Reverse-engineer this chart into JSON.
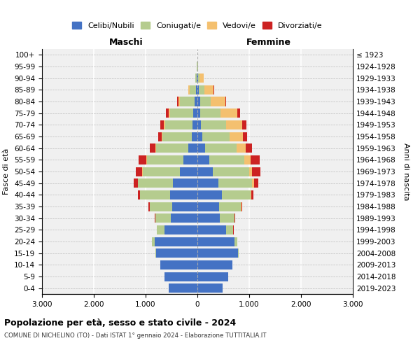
{
  "age_groups": [
    "0-4",
    "5-9",
    "10-14",
    "15-19",
    "20-24",
    "25-29",
    "30-34",
    "35-39",
    "40-44",
    "45-49",
    "50-54",
    "55-59",
    "60-64",
    "65-69",
    "70-74",
    "75-79",
    "80-84",
    "85-89",
    "90-94",
    "95-99",
    "100+"
  ],
  "birth_years": [
    "2019-2023",
    "2014-2018",
    "2009-2013",
    "2004-2008",
    "1999-2003",
    "1994-1998",
    "1989-1993",
    "1984-1988",
    "1979-1983",
    "1974-1978",
    "1969-1973",
    "1964-1968",
    "1959-1963",
    "1954-1958",
    "1949-1953",
    "1944-1948",
    "1939-1943",
    "1934-1938",
    "1929-1933",
    "1924-1928",
    "≤ 1923"
  ],
  "maschi": {
    "celibi": [
      550,
      640,
      720,
      800,
      820,
      640,
      510,
      480,
      530,
      470,
      340,
      270,
      180,
      110,
      90,
      80,
      60,
      30,
      10,
      4,
      2
    ],
    "coniugati": [
      0,
      0,
      0,
      10,
      60,
      140,
      300,
      440,
      580,
      680,
      720,
      700,
      620,
      560,
      530,
      450,
      280,
      120,
      30,
      5,
      2
    ],
    "vedovi": [
      0,
      0,
      0,
      0,
      1,
      1,
      1,
      2,
      3,
      5,
      5,
      10,
      15,
      20,
      30,
      30,
      30,
      20,
      5,
      2,
      1
    ],
    "divorziati": [
      0,
      0,
      0,
      0,
      2,
      5,
      10,
      20,
      40,
      80,
      130,
      150,
      100,
      70,
      60,
      50,
      20,
      10,
      2,
      0,
      0
    ]
  },
  "femmine": {
    "nubili": [
      490,
      600,
      670,
      790,
      720,
      560,
      430,
      420,
      470,
      400,
      300,
      230,
      150,
      90,
      70,
      60,
      55,
      30,
      10,
      4,
      2
    ],
    "coniugate": [
      0,
      0,
      0,
      10,
      50,
      130,
      280,
      420,
      560,
      660,
      700,
      680,
      600,
      530,
      490,
      380,
      200,
      100,
      30,
      4,
      2
    ],
    "vedove": [
      0,
      0,
      0,
      0,
      2,
      3,
      5,
      8,
      15,
      30,
      60,
      120,
      180,
      260,
      310,
      330,
      280,
      180,
      80,
      10,
      2
    ],
    "divorziate": [
      0,
      0,
      0,
      0,
      2,
      5,
      10,
      20,
      40,
      80,
      160,
      170,
      120,
      80,
      70,
      50,
      20,
      10,
      2,
      0,
      0
    ]
  },
  "colors": {
    "celibi": "#4472c4",
    "coniugati": "#b5cc8e",
    "vedovi": "#f4c06f",
    "divorziati": "#cc2222"
  },
  "title": "Popolazione per età, sesso e stato civile - 2024",
  "subtitle": "COMUNE DI NICHELINO (TO) - Dati ISTAT 1° gennaio 2024 - Elaborazione TUTTITALIA.IT",
  "xlabel_left": "Maschi",
  "xlabel_right": "Femmine",
  "ylabel_left": "Fasce di età",
  "ylabel_right": "Anni di nascita",
  "xlim": 3000,
  "legend_labels": [
    "Celibi/Nubili",
    "Coniugati/e",
    "Vedovi/e",
    "Divorziati/e"
  ],
  "background_color": "#f0f0f0"
}
